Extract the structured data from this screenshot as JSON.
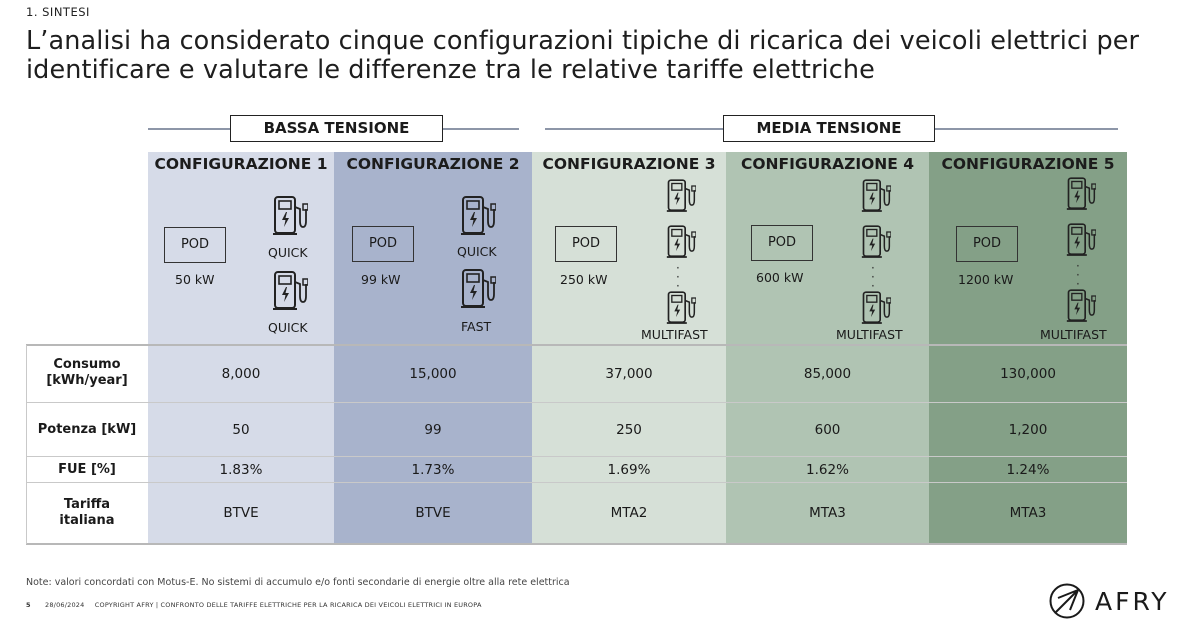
{
  "header": {
    "section": "1. SINTESI",
    "title": "L’analisi ha considerato cinque configurazioni tipiche di ricarica dei veicoli elettrici per identificare e valutare le differenze tra le relative tariffe elettriche"
  },
  "tensions": {
    "low": "BASSA TENSIONE",
    "medium": "MEDIA TENSIONE"
  },
  "configs": [
    {
      "title": "CONFIGURAZIONE 1",
      "pod": "POD",
      "power_label": "50 kW",
      "chargers": [
        "QUICK",
        "QUICK"
      ]
    },
    {
      "title": "CONFIGURAZIONE 2",
      "pod": "POD",
      "power_label": "99 kW",
      "chargers": [
        "QUICK",
        "FAST"
      ]
    },
    {
      "title": "CONFIGURAZIONE 3",
      "pod": "POD",
      "power_label": "250 kW",
      "chargers": [
        "MULTIFAST"
      ]
    },
    {
      "title": "CONFIGURAZIONE 4",
      "pod": "POD",
      "power_label": "600 kW",
      "chargers": [
        "MULTIFAST"
      ]
    },
    {
      "title": "CONFIGURAZIONE 5",
      "pod": "POD",
      "power_label": "1200 kW",
      "chargers": [
        "MULTIFAST"
      ]
    }
  ],
  "table": {
    "rows": [
      {
        "label": "Consumo [kWh/year]",
        "label_l1": "Consumo",
        "label_l2": "[kWh/year]",
        "values": [
          "8,000",
          "15,000",
          "37,000",
          "85,000",
          "130,000"
        ]
      },
      {
        "label": "Potenza [kW]",
        "values": [
          "50",
          "99",
          "250",
          "600",
          "1,200"
        ]
      },
      {
        "label": "FUE [%]",
        "values": [
          "1.83%",
          "1.73%",
          "1.69%",
          "1.62%",
          "1.24%"
        ]
      },
      {
        "label": "Tariffa italiana",
        "label_l1": "Tariffa",
        "label_l2": "italiana",
        "values": [
          "BTVE",
          "BTVE",
          "MTA2",
          "MTA3",
          "MTA3"
        ]
      }
    ]
  },
  "footer": {
    "note": "Note: valori concordati con Motus-E. No sistemi di accumulo e/o fonti secondarie di energie oltre alla rete elettrica",
    "page": "5",
    "date": "28/06/2024",
    "copyright": "COPYRIGHT AFRY | CONFRONTO DELLE TARIFFE ELETTRICHE PER LA RICARICA DEI VEICOLI ELETTRICI IN EUROPA",
    "logo": "AFRY"
  },
  "colors": {
    "config1": "#d6dbe8",
    "config2": "#a8b3cc",
    "config3": "#d6e0d7",
    "config4": "#b0c4b3",
    "config5": "#84a087"
  },
  "icons": [
    "ev-charger-icon",
    "afry-logo-icon"
  ]
}
